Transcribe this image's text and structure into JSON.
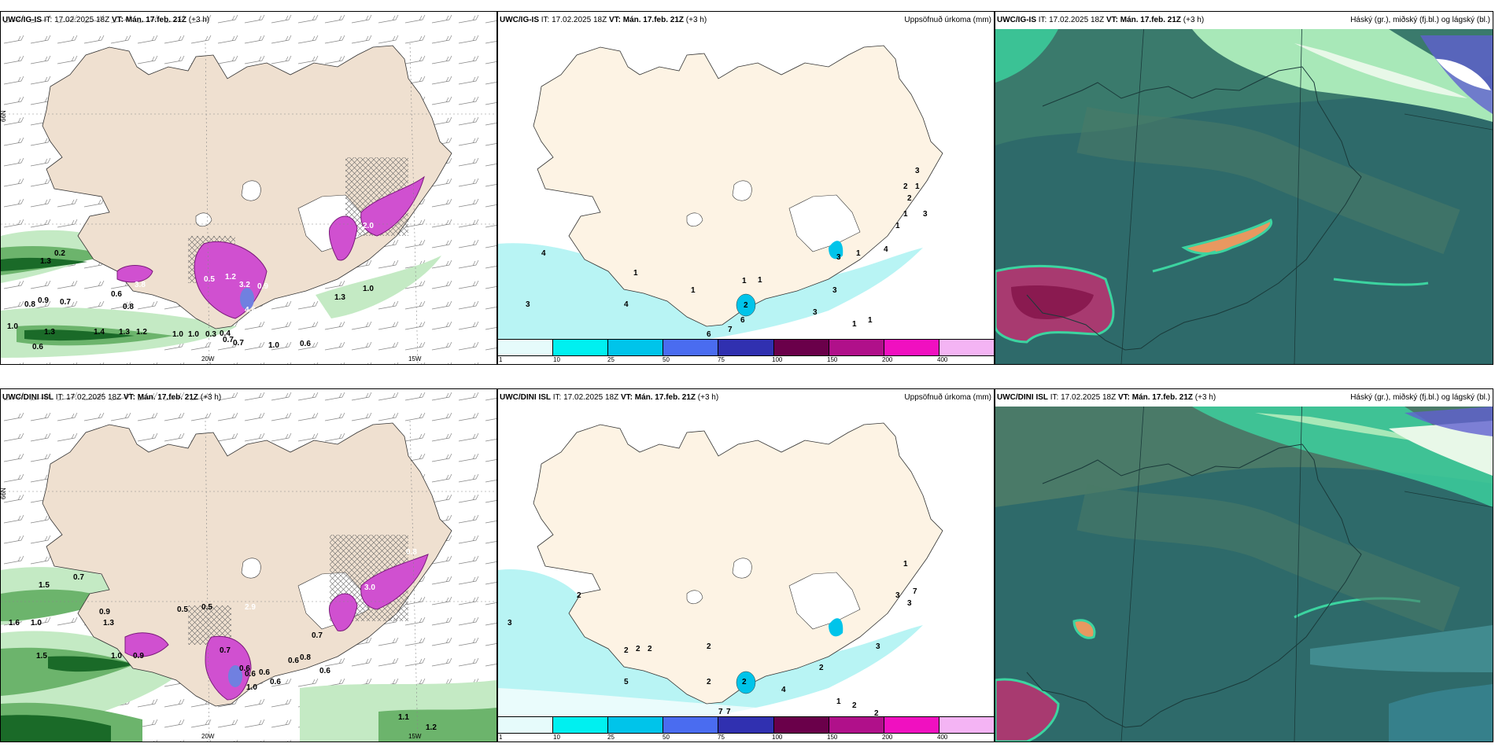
{
  "panels": {
    "p1": {
      "model": "UWC/IG-IS",
      "it_label": "IT:",
      "it_value": "17.02.2025 18Z",
      "vt_label": "VT: Mán. 17.feb. 21Z",
      "lead": "(+3 h)",
      "title_right": ""
    },
    "p2": {
      "model": "UWC/IG-IS",
      "it_label": "IT:",
      "it_value": "17.02.2025 18Z",
      "vt_label": "VT: Mán. 17.feb. 21Z",
      "lead": "(+3 h)",
      "title_right": "Uppsöfnuð úrkoma (mm)"
    },
    "p3": {
      "model": "UWC/IG-IS",
      "it_label": "IT:",
      "it_value": "17.02.2025 18Z",
      "vt_label": "VT: Mán. 17.feb. 21Z",
      "lead": "(+3 h)",
      "title_right": "Háský (gr.), miðský (fj.bl.) og lágský (bl.)"
    },
    "p4": {
      "model": "UWC/DINI ISL",
      "it_label": "IT:",
      "it_value": "17.02.2025 18Z",
      "vt_label": "VT: Mán. 17.feb. 21Z",
      "lead": "(+3 h)",
      "title_right": ""
    },
    "p5": {
      "model": "UWC/DINI ISL",
      "it_label": "IT:",
      "it_value": "17.02.2025 18Z",
      "vt_label": "VT: Mán. 17.feb. 21Z",
      "lead": "(+3 h)",
      "title_right": "Uppsöfnuð úrkoma (mm)"
    },
    "p6": {
      "model": "UWC/DINI ISL",
      "it_label": "IT:",
      "it_value": "17.02.2025 18Z",
      "vt_label": "VT: Mán. 17.feb. 21Z",
      "lead": "(+3 h)",
      "title_right": "Háský (gr.), miðský (fj.bl.) og lágský (bl.)"
    }
  },
  "axes": {
    "lat_66n": "66N",
    "lon_20w": "20W",
    "lon_15w": "15W"
  },
  "colorbar": {
    "ticks": [
      "1",
      "10",
      "25",
      "50",
      "75",
      "100",
      "150",
      "200",
      "400"
    ],
    "colors": [
      "#e6fbfb",
      "#00f0f0",
      "#00c4ea",
      "#4a6cf0",
      "#3030b0",
      "#6a004a",
      "#b0108a",
      "#f010c0",
      "#f4b4f4"
    ]
  },
  "colors": {
    "land": "#efe0d0",
    "land_precip": "#fdf3e4",
    "ice": "#ffffff",
    "light_precip": "#b8f4f4",
    "wind_dark": "#1a6a28",
    "wind_mid": "#6cb46c",
    "wind_light": "#c4eac4",
    "magenta": "#d050d0",
    "cloud_low": "#2e6a6a",
    "cloud_mid": "#4a7a68",
    "cloud_high": "#3cd4a0"
  },
  "labels": {
    "p1_values": [
      "0.2",
      "1.3",
      "0.8",
      "0.9",
      "0.7",
      "0.8",
      "1.0",
      "1.3",
      "1.4",
      "1.3",
      "1.2",
      "1.0",
      "1.0",
      "0.3",
      "0.4",
      "0.7",
      "0.7",
      "1.0",
      "0.6",
      "0.6",
      "0.6",
      "3.8",
      "0.5",
      "1.2",
      "3.2",
      "0.9",
      "2.2",
      "4.6",
      "2.0",
      "1.3",
      "1.0"
    ],
    "p2_values": [
      "4",
      "3",
      "1",
      "4",
      "1",
      "1",
      "3",
      "1",
      "2",
      "3",
      "1",
      "3",
      "1",
      "1",
      "6",
      "7",
      "6",
      "2",
      "1",
      "1",
      "4",
      "1",
      "2",
      "3",
      "3"
    ],
    "p4_values": [
      "1.5",
      "0.7",
      "1.6",
      "1.0",
      "1.3",
      "1.5",
      "1.0",
      "0.9",
      "0.6",
      "0.8",
      "0.7",
      "0.9",
      "0.5",
      "0.6",
      "0.7",
      "1.0",
      "2.9",
      "0.5",
      "0.6",
      "0.6",
      "0.6",
      "0.6",
      "1.1",
      "1.2",
      "3.0",
      "0.8"
    ],
    "p5_values": [
      "3",
      "2",
      "2",
      "2",
      "2",
      "5",
      "2",
      "2",
      "7",
      "7",
      "4",
      "2",
      "1",
      "2",
      "3",
      "3",
      "1",
      "7",
      "3",
      "2",
      "2"
    ]
  }
}
